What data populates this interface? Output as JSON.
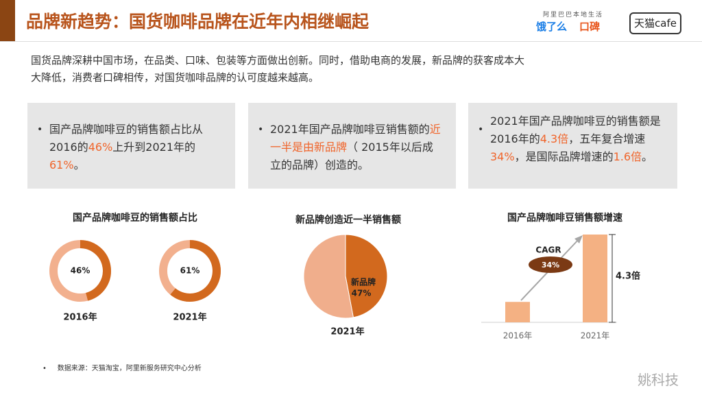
{
  "header": {
    "title": "品牌新趋势：国货咖啡品牌在近年内相继崛起",
    "logo_top": "阿里巴巴本地生活",
    "logo_eleme": "饿了么",
    "logo_koubei": "口碑",
    "logo_tmall": "天猫cafe"
  },
  "intro": [
    "国货品牌深耕中国市场，在品类、口味、包装等方面做出创新。同时，借助电商的发展，新品牌的获客成本大",
    "大降低，消费者口碑相传，对国货咖啡品牌的认可度越来越高。"
  ],
  "highlight_color": "#f0642a",
  "cards": [
    {
      "segments": [
        {
          "text": "国产品牌咖啡豆的销售额占比从2016的",
          "highlight": false
        },
        {
          "text": "46%",
          "highlight": true
        },
        {
          "text": "上升到2021年的",
          "highlight": false
        },
        {
          "text": "61%",
          "highlight": true
        },
        {
          "text": "。",
          "highlight": false
        }
      ]
    },
    {
      "segments": [
        {
          "text": "2021年国产品牌咖啡豆销售额的",
          "highlight": false
        },
        {
          "text": "近一半是由新品牌",
          "highlight": true
        },
        {
          "text": "（ 2015年以后成立的品牌）创造的。",
          "highlight": false
        }
      ]
    },
    {
      "segments": [
        {
          "text": "2021年国产品牌咖啡豆的销售额是2016年的",
          "highlight": false
        },
        {
          "text": "4.3倍",
          "highlight": true
        },
        {
          "text": "，五年复合增速",
          "highlight": false
        },
        {
          "text": "34%",
          "highlight": true
        },
        {
          "text": "，是国际品牌增速的",
          "highlight": false
        },
        {
          "text": "1.6倍",
          "highlight": true
        },
        {
          "text": "。",
          "highlight": false
        }
      ]
    }
  ],
  "chart_data": [
    {
      "type": "donut",
      "title": "国产品牌咖啡豆的销售额占比",
      "categories": [
        "2016年",
        "2021年"
      ],
      "values": [
        46,
        61
      ],
      "value_labels": [
        "46%",
        "61%"
      ],
      "color": "#d2691e",
      "rest_color": "#f2b08e"
    },
    {
      "type": "pie",
      "title": "新品牌创造近一半销售额",
      "xlabel": "2021年",
      "categories": [
        "新品牌",
        null
      ],
      "values": [
        47,
        53
      ],
      "value_labels": [
        "47%",
        null
      ],
      "colors": [
        "#d2691e",
        "#f0ae8c"
      ]
    },
    {
      "type": "bar",
      "title": "国产品牌咖啡豆销售额增速",
      "categories": [
        "2016年",
        "2021年"
      ],
      "values": [
        1,
        4.3
      ],
      "ylim": [
        0,
        4.3
      ],
      "color": "#f4b183",
      "annotations": {
        "cagr_label": "CAGR",
        "cagr": "34%",
        "multiple": "4.3倍"
      }
    }
  ],
  "source": "数据来源：天猫淘宝，阿里新服务研究中心分析",
  "watermark": "姚科技"
}
